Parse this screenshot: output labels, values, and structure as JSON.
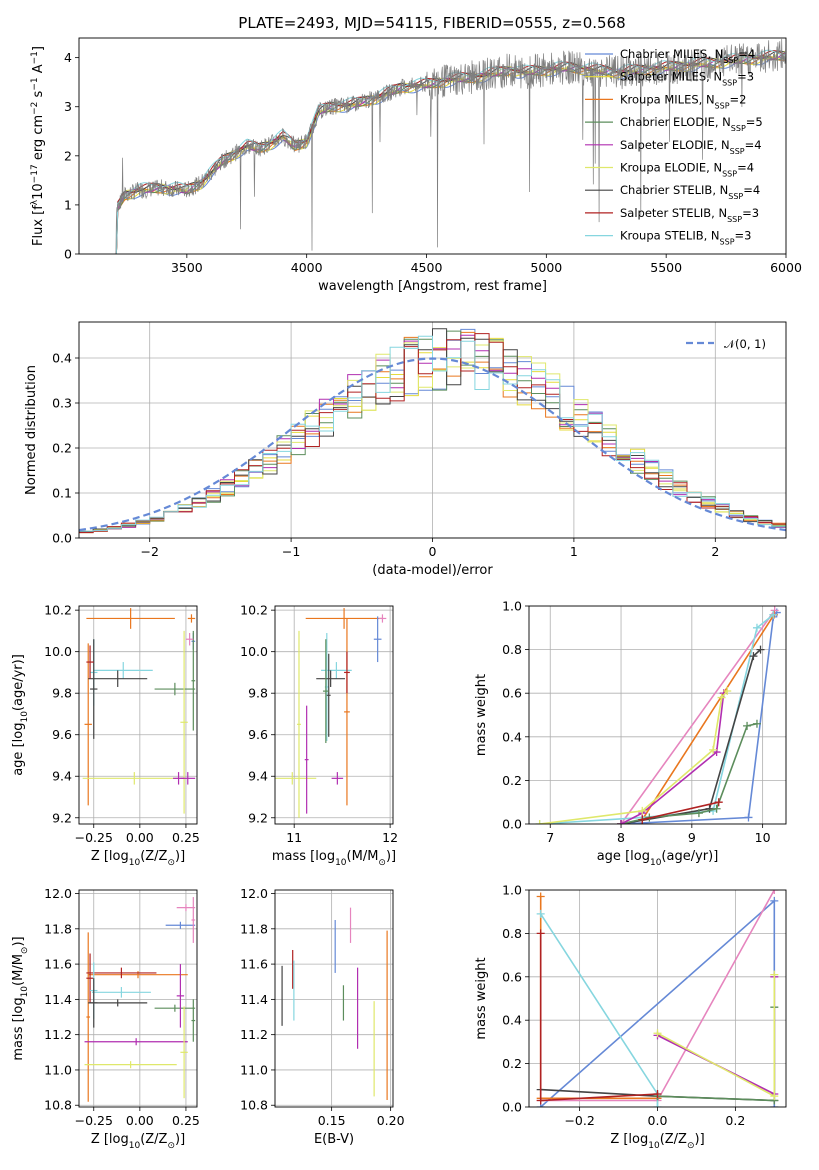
{
  "figure": {
    "title": "PLATE=2493, MJD=54115, FIBERID=0555, z=0.568"
  },
  "model_labels": [
    {
      "label": "Chabrier MILES, N",
      "sub": "SSP",
      "post": "=4",
      "color": "#6589d6"
    },
    {
      "label": "Salpeter MILES, N",
      "sub": "SSP",
      "post": "=3",
      "color": "#e5db3d"
    },
    {
      "label": "Kroupa MILES, N",
      "sub": "SSP",
      "post": "=2",
      "color": "#e9771f"
    },
    {
      "label": "Chabrier ELODIE, N",
      "sub": "SSP",
      "post": "=5",
      "color": "#5c8d5c"
    },
    {
      "label": "Salpeter ELODIE, N",
      "sub": "SSP",
      "post": "=4",
      "color": "#b12eb1"
    },
    {
      "label": "Kroupa ELODIE, N",
      "sub": "SSP",
      "post": "=4",
      "color": "#dfe86b"
    },
    {
      "label": "Chabrier STELIB, N",
      "sub": "SSP",
      "post": "=4",
      "color": "#444444"
    },
    {
      "label": "Salpeter STELIB, N",
      "sub": "SSP",
      "post": "=3",
      "color": "#b02222"
    },
    {
      "label": "Kroupa STELIB, N",
      "sub": "SSP",
      "post": "=3",
      "color": "#86d6df"
    }
  ],
  "extra_colors": {
    "data": "#7f7f7f",
    "pink": "#e685be"
  },
  "chart_data": [
    {
      "id": "spectrum",
      "type": "line",
      "xlabel": "wavelength [Angstrom, rest frame]",
      "ylabel_parts": [
        "Flux [f",
        "λ",
        "10",
        "−17",
        " erg cm",
        "−2",
        " s",
        "−1",
        " A",
        "−1",
        "]"
      ],
      "xlim": [
        3050,
        6000
      ],
      "ylim": [
        0,
        4.4
      ],
      "xticks": [
        "3500",
        "4000",
        "4500",
        "5000",
        "5500",
        "6000"
      ],
      "yticks": [
        "0",
        "1",
        "2",
        "3",
        "4"
      ],
      "continuum": {
        "x": [
          3200,
          3240,
          3300,
          3400,
          3500,
          3560,
          3650,
          3700,
          3750,
          3800,
          3850,
          3900,
          3950,
          4000,
          4050,
          4100,
          4200,
          4300,
          4400,
          4500,
          4600,
          4700,
          4800,
          4850,
          4900,
          5000,
          5100,
          5200,
          5300,
          5400,
          5500,
          5600,
          5700,
          5800,
          5900,
          6000
        ],
        "y": [
          0.85,
          1.2,
          1.3,
          1.35,
          1.3,
          1.45,
          1.9,
          2.05,
          2.2,
          2.15,
          2.25,
          2.4,
          2.2,
          2.3,
          2.9,
          3.0,
          3.05,
          3.2,
          3.4,
          3.45,
          3.55,
          3.6,
          3.7,
          3.75,
          3.7,
          3.75,
          3.8,
          3.75,
          3.7,
          3.75,
          3.8,
          3.85,
          3.9,
          3.95,
          4.0,
          4.05
        ]
      }
    },
    {
      "id": "residuals",
      "type": "histogram",
      "xlabel": "(data-model)/error",
      "ylabel": "Normed distribution",
      "xlim": [
        -2.5,
        2.5
      ],
      "ylim": [
        0,
        0.48
      ],
      "xticks": [
        "−2",
        "−1",
        "0",
        "1",
        "2"
      ],
      "yticks": [
        "0.0",
        "0.1",
        "0.2",
        "0.3",
        "0.4"
      ],
      "legend": "𝒩(0, 1)",
      "bin_width": 0.1,
      "legend_loc": "upper right"
    },
    {
      "id": "age-vs-z",
      "type": "errorbar",
      "xlabel_parts": [
        "Z [log",
        "10",
        "(Z/Z",
        "⊙",
        ")]"
      ],
      "ylabel_parts": [
        "age  [log",
        "10",
        "(age/yr)]"
      ],
      "xlim": [
        -0.33,
        0.31
      ],
      "ylim": [
        9.17,
        10.22
      ],
      "xticks": [
        "−0.25",
        "0.00",
        "0.25"
      ],
      "yticks": [
        "9.2",
        "9.4",
        "9.6",
        "9.8",
        "10.0",
        "10.2"
      ],
      "points": [
        {
          "c": 2,
          "x": -0.05,
          "xe": 0.24,
          "y": 10.16,
          "ye": 0.05
        },
        {
          "c": 2,
          "x": 0.28,
          "xe": 0.02,
          "y": 10.16,
          "ye": 0.02
        },
        {
          "c": 2,
          "x": -0.28,
          "xe": 0.02,
          "y": 9.65,
          "ye": 0.39
        },
        {
          "c": 0,
          "x": 0.29,
          "xe": 0.01,
          "y": 10.05,
          "ye": 0.04
        },
        {
          "c": 8,
          "x": -0.09,
          "xe": 0.16,
          "y": 9.91,
          "ye": 0.04
        },
        {
          "c": 8,
          "x": -0.25,
          "xe": 0.02,
          "y": 9.9,
          "ye": 0.16
        },
        {
          "c": 6,
          "x": -0.12,
          "xe": 0.16,
          "y": 9.87,
          "ye": 0.04
        },
        {
          "c": 6,
          "x": -0.25,
          "xe": 0.02,
          "y": 9.82,
          "ye": 0.24
        },
        {
          "c": 7,
          "x": -0.27,
          "xe": 0.02,
          "y": 9.95,
          "ye": 0.08
        },
        {
          "c": 3,
          "x": 0.19,
          "xe": 0.11,
          "y": 9.82,
          "ye": 0.03
        },
        {
          "c": 3,
          "x": 0.29,
          "xe": 0.01,
          "y": 9.86,
          "ye": 0.24
        },
        {
          "c": 5,
          "x": 0.24,
          "xe": 0.02,
          "y": 9.66,
          "ye": 0.44
        },
        {
          "c": 5,
          "x": -0.03,
          "xe": 0.28,
          "y": 9.39,
          "ye": 0.03
        },
        {
          "c": 4,
          "x": 0.26,
          "xe": 0.04,
          "y": 9.39,
          "ye": 0.03
        },
        {
          "c": 4,
          "x": 0.21,
          "xe": 0.03,
          "y": 9.39,
          "ye": 0.03
        },
        {
          "c": 9,
          "x": 0.27,
          "xe": 0.02,
          "y": 10.06,
          "ye": 0.03
        }
      ]
    },
    {
      "id": "age-vs-mass",
      "type": "errorbar",
      "xlabel_parts": [
        "mass [log",
        "10",
        "(M/M",
        "⊙",
        ")]"
      ],
      "ylabel_parts": [],
      "xlim": [
        10.8,
        12.03
      ],
      "ylim": [
        9.17,
        10.22
      ],
      "xticks": [
        "11",
        "12"
      ],
      "yticks": [
        "9.2",
        "9.4",
        "9.6",
        "9.8",
        "10.0",
        "10.2"
      ],
      "points": [
        {
          "c": 2,
          "x": 11.52,
          "xe": 0.4,
          "y": 10.16,
          "ye": 0.05
        },
        {
          "c": 2,
          "x": 11.55,
          "xe": 0.03,
          "y": 9.71,
          "ye": 0.45
        },
        {
          "c": 0,
          "x": 11.87,
          "xe": 0.04,
          "y": 10.06,
          "ye": 0.11
        },
        {
          "c": 8,
          "x": 11.44,
          "xe": 0.16,
          "y": 9.91,
          "ye": 0.04
        },
        {
          "c": 8,
          "x": 11.34,
          "xe": 0.02,
          "y": 9.83,
          "ye": 0.26
        },
        {
          "c": 6,
          "x": 11.38,
          "xe": 0.15,
          "y": 9.87,
          "ye": 0.04
        },
        {
          "c": 6,
          "x": 11.36,
          "xe": 0.02,
          "y": 9.79,
          "ye": 0.2
        },
        {
          "c": 7,
          "x": 11.55,
          "xe": 0.03,
          "y": 9.9,
          "ye": 0.1
        },
        {
          "c": 3,
          "x": 11.33,
          "xe": 0.03,
          "y": 9.81,
          "ye": 0.25
        },
        {
          "c": 5,
          "x": 11.05,
          "xe": 0.02,
          "y": 9.65,
          "ye": 0.45
        },
        {
          "c": 5,
          "x": 10.98,
          "xe": 0.25,
          "y": 9.39,
          "ye": 0.03
        },
        {
          "c": 4,
          "x": 11.13,
          "xe": 0.02,
          "y": 9.48,
          "ye": 0.26
        },
        {
          "c": 4,
          "x": 11.45,
          "xe": 0.06,
          "y": 9.39,
          "ye": 0.03
        },
        {
          "c": 9,
          "x": 11.92,
          "xe": 0.04,
          "y": 10.16,
          "ye": 0.02
        }
      ]
    },
    {
      "id": "weight-vs-age",
      "type": "line",
      "xlabel_parts": [
        "age  [log",
        "10",
        "(age/yr)]"
      ],
      "ylabel": "mass weight",
      "xlim": [
        6.7,
        10.33
      ],
      "ylim": [
        0,
        1
      ],
      "xticks": [
        "7",
        "8",
        "9",
        "10"
      ],
      "yticks": [
        "0.0",
        "0.2",
        "0.4",
        "0.6",
        "0.8",
        "1.0"
      ],
      "series": [
        {
          "c": 0,
          "x": [
            8.0,
            9.8,
            10.15,
            10.2
          ],
          "y": [
            0.0,
            0.03,
            0.95,
            0.97
          ]
        },
        {
          "c": 9,
          "x": [
            8.0,
            10.17
          ],
          "y": [
            0.0,
            0.98
          ]
        },
        {
          "c": 2,
          "x": [
            8.0,
            8.3,
            10.16
          ],
          "y": [
            0.0,
            0.02,
            0.96
          ]
        },
        {
          "c": 8,
          "x": [
            6.85,
            8.3,
            9.3,
            9.92,
            10.15
          ],
          "y": [
            0.0,
            0.03,
            0.06,
            0.9,
            0.96
          ]
        },
        {
          "c": 6,
          "x": [
            8.0,
            9.25,
            9.87,
            9.97
          ],
          "y": [
            0.0,
            0.07,
            0.77,
            0.8
          ]
        },
        {
          "c": 3,
          "x": [
            8.0,
            8.4,
            9.1,
            9.35,
            9.78,
            9.92
          ],
          "y": [
            0.0,
            0.03,
            0.05,
            0.07,
            0.45,
            0.46
          ]
        },
        {
          "c": 4,
          "x": [
            8.0,
            8.3,
            9.35,
            9.45
          ],
          "y": [
            0.0,
            0.05,
            0.33,
            0.6
          ]
        },
        {
          "c": 5,
          "x": [
            6.85,
            8.3,
            9.3,
            9.42,
            9.5
          ],
          "y": [
            0.0,
            0.06,
            0.34,
            0.58,
            0.61
          ]
        },
        {
          "c": 7,
          "x": [
            8.3,
            9.38
          ],
          "y": [
            0.02,
            0.1
          ]
        }
      ]
    },
    {
      "id": "mass-vs-z",
      "type": "errorbar",
      "xlabel_parts": [
        "Z [log",
        "10",
        "(Z/Z",
        "⊙",
        ")]"
      ],
      "ylabel_parts": [
        "mass [log",
        "10",
        "(M/M",
        "⊙",
        ")]"
      ],
      "xlim": [
        -0.33,
        0.31
      ],
      "ylim": [
        10.79,
        12.02
      ],
      "xticks": [
        "−0.25",
        "0.00",
        "0.25"
      ],
      "yticks": [
        "10.8",
        "11.0",
        "11.2",
        "11.4",
        "11.6",
        "11.8",
        "12.0"
      ],
      "points": [
        {
          "c": 9,
          "x": 0.25,
          "xe": 0.05,
          "y": 11.92,
          "ye": 0.02
        },
        {
          "c": 0,
          "x": 0.22,
          "xe": 0.08,
          "y": 11.82,
          "ye": 0.02
        },
        {
          "c": 9,
          "x": 0.29,
          "xe": 0.01,
          "y": 11.85,
          "ye": 0.13
        },
        {
          "c": 2,
          "x": -0.28,
          "xe": 0.01,
          "y": 11.3,
          "ye": 0.48
        },
        {
          "c": 2,
          "x": -0.01,
          "xe": 0.27,
          "y": 11.54,
          "ye": 0.02
        },
        {
          "c": 7,
          "x": -0.1,
          "xe": 0.19,
          "y": 11.55,
          "ye": 0.03
        },
        {
          "c": 7,
          "x": -0.27,
          "xe": 0.02,
          "y": 11.52,
          "ye": 0.14
        },
        {
          "c": 8,
          "x": -0.1,
          "xe": 0.16,
          "y": 11.44,
          "ye": 0.03
        },
        {
          "c": 8,
          "x": -0.25,
          "xe": 0.02,
          "y": 11.45,
          "ye": 0.16
        },
        {
          "c": 6,
          "x": -0.12,
          "xe": 0.16,
          "y": 11.38,
          "ye": 0.02
        },
        {
          "c": 6,
          "x": -0.25,
          "xe": 0.02,
          "y": 11.38,
          "ye": 0.14
        },
        {
          "c": 3,
          "x": 0.19,
          "xe": 0.11,
          "y": 11.35,
          "ye": 0.02
        },
        {
          "c": 3,
          "x": 0.29,
          "xe": 0.01,
          "y": 11.28,
          "ye": 0.12
        },
        {
          "c": 4,
          "x": -0.02,
          "xe": 0.28,
          "y": 11.16,
          "ye": 0.02
        },
        {
          "c": 4,
          "x": 0.22,
          "xe": 0.02,
          "y": 11.42,
          "ye": 0.18
        },
        {
          "c": 5,
          "x": -0.05,
          "xe": 0.25,
          "y": 11.03,
          "ye": 0.02
        },
        {
          "c": 5,
          "x": 0.24,
          "xe": 0.02,
          "y": 11.1,
          "ye": 0.26
        }
      ]
    },
    {
      "id": "mass-vs-ebv",
      "type": "errorbar",
      "xlabel": "E(B-V)",
      "ylabel_parts": [],
      "xlim": [
        0.102,
        0.202
      ],
      "ylim": [
        10.79,
        12.02
      ],
      "xticks": [
        "0.15",
        "0.20"
      ],
      "yticks": [
        "10.8",
        "11.0",
        "11.2",
        "11.4",
        "11.6",
        "11.8",
        "12.0"
      ],
      "points": [
        {
          "c": 6,
          "x": 0.108,
          "xe": 0.0,
          "y": 11.42,
          "ye": 0.17
        },
        {
          "c": 7,
          "x": 0.117,
          "xe": 0.0,
          "y": 11.57,
          "ye": 0.11
        },
        {
          "c": 8,
          "x": 0.118,
          "xe": 0.0,
          "y": 11.45,
          "ye": 0.17
        },
        {
          "c": 0,
          "x": 0.153,
          "xe": 0.0,
          "y": 11.7,
          "ye": 0.15
        },
        {
          "c": 9,
          "x": 0.166,
          "xe": 0.0,
          "y": 11.82,
          "ye": 0.1
        },
        {
          "c": 3,
          "x": 0.16,
          "xe": 0.0,
          "y": 11.38,
          "ye": 0.1
        },
        {
          "c": 4,
          "x": 0.172,
          "xe": 0.0,
          "y": 11.35,
          "ye": 0.23
        },
        {
          "c": 5,
          "x": 0.186,
          "xe": 0.0,
          "y": 11.12,
          "ye": 0.27
        },
        {
          "c": 2,
          "x": 0.197,
          "xe": 0.0,
          "y": 11.31,
          "ye": 0.48
        }
      ]
    },
    {
      "id": "weight-vs-z",
      "type": "line",
      "xlabel_parts": [
        "Z [log",
        "10",
        "(Z/Z",
        "⊙",
        ")]"
      ],
      "ylabel": "mass weight",
      "xlim": [
        -0.33,
        0.33
      ],
      "ylim": [
        0,
        1
      ],
      "xticks": [
        "−0.2",
        "0.0",
        "0.2"
      ],
      "yticks": [
        "0.0",
        "0.2",
        "0.4",
        "0.6",
        "0.8",
        "1.0"
      ],
      "series": [
        {
          "c": 0,
          "x": [
            -0.3,
            0.3,
            0.3
          ],
          "y": [
            0.0,
            0.95,
            0.0
          ]
        },
        {
          "c": 9,
          "x": [
            -0.3,
            0.0,
            0.3
          ],
          "y": [
            0.03,
            0.03,
            1.0
          ]
        },
        {
          "c": 2,
          "x": [
            -0.3,
            -0.3,
            0.0
          ],
          "y": [
            0.97,
            0.04,
            0.04
          ]
        },
        {
          "c": 8,
          "x": [
            -0.3,
            0.0,
            0.0
          ],
          "y": [
            0.89,
            0.06,
            0.0
          ]
        },
        {
          "c": 6,
          "x": [
            -0.3,
            0.0,
            0.3
          ],
          "y": [
            0.08,
            0.05,
            0.03
          ]
        },
        {
          "c": 3,
          "x": [
            0.0,
            0.3,
            0.3
          ],
          "y": [
            0.05,
            0.03,
            0.46
          ]
        },
        {
          "c": 4,
          "x": [
            0.0,
            0.3,
            0.3
          ],
          "y": [
            0.33,
            0.06,
            0.6
          ]
        },
        {
          "c": 5,
          "x": [
            0.0,
            0.3,
            0.3
          ],
          "y": [
            0.34,
            0.05,
            0.61
          ]
        },
        {
          "c": 7,
          "x": [
            -0.3,
            -0.3,
            0.0
          ],
          "y": [
            0.8,
            0.03,
            0.06
          ]
        }
      ]
    }
  ]
}
